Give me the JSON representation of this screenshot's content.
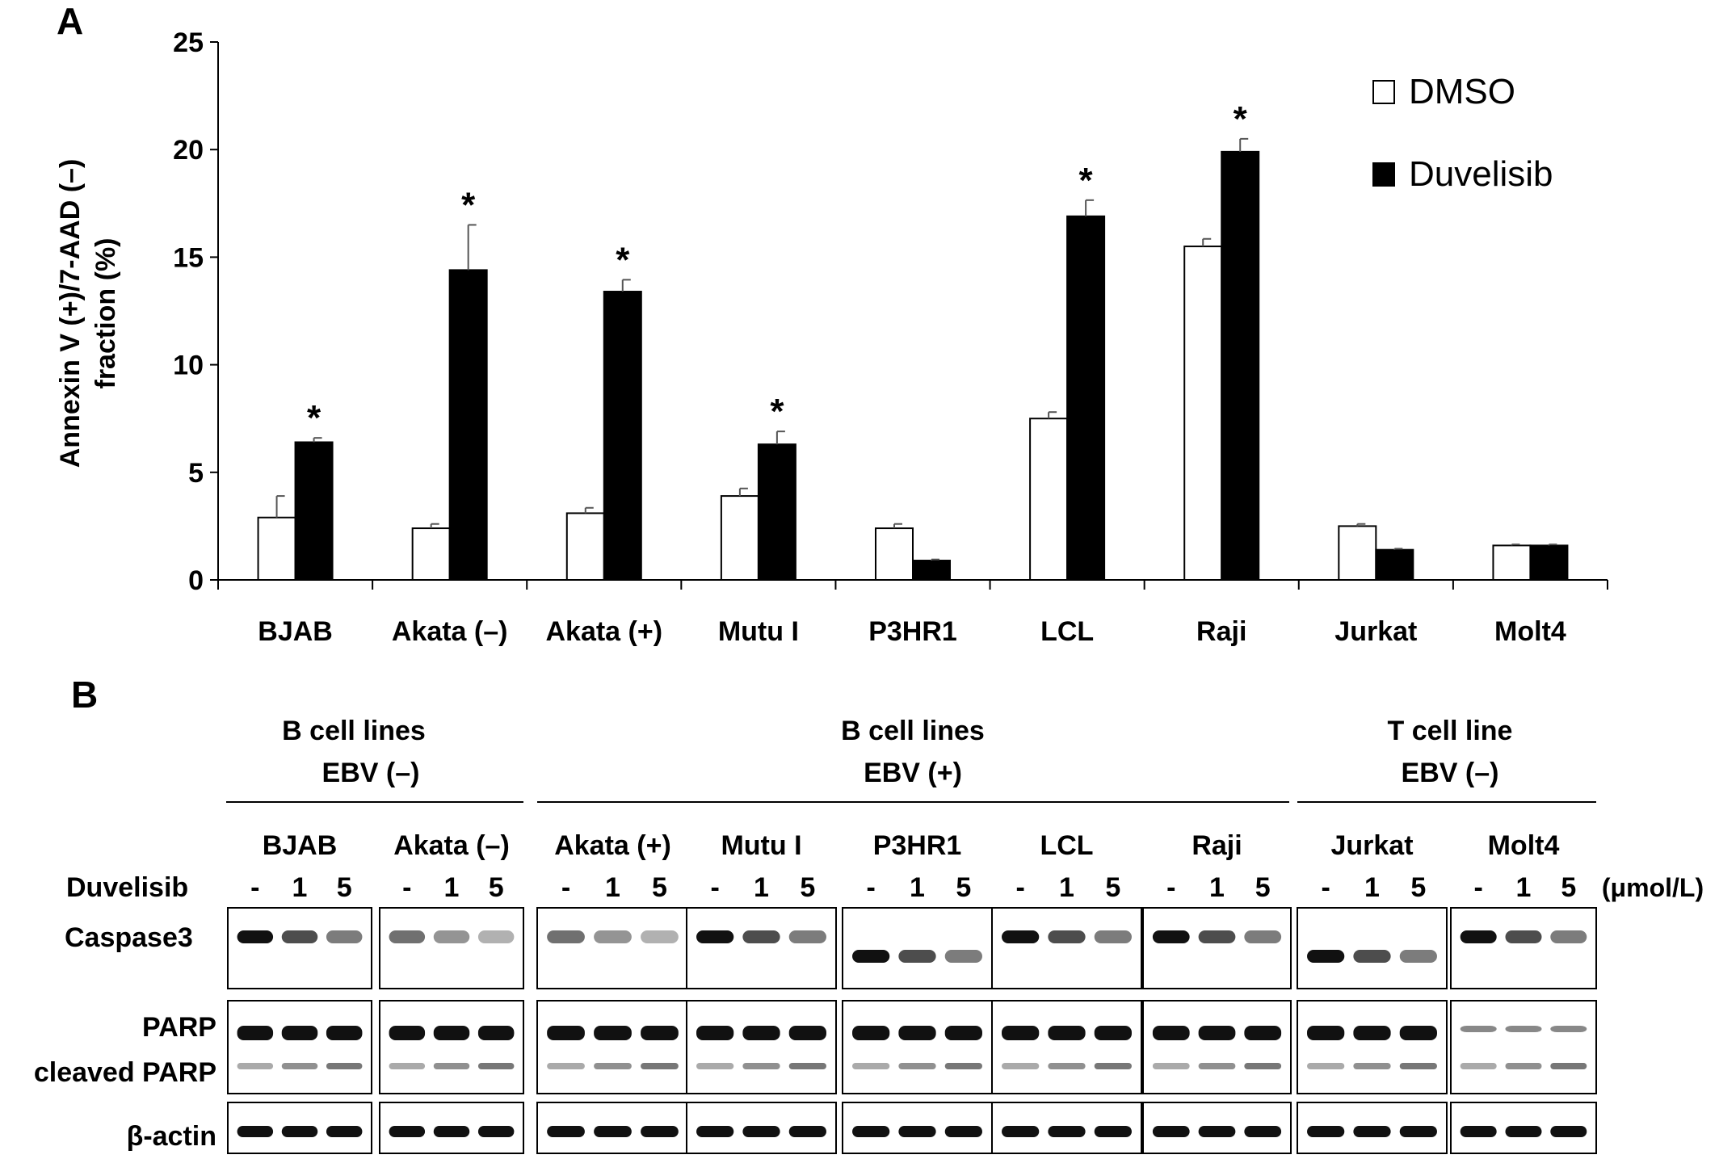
{
  "panel_a_letter": "A",
  "panel_b_letter": "B",
  "chart_data": {
    "type": "bar",
    "title": "",
    "ylabel_line1": "Annexin V (+)/7-AAD (–)",
    "ylabel_line2": "fraction (%)",
    "xlabel": "",
    "ylim": [
      0,
      25
    ],
    "yticks": [
      "0",
      "5",
      "10",
      "15",
      "20",
      "25"
    ],
    "categories": [
      "BJAB",
      "Akata (–)",
      "Akata (+)",
      "Mutu I",
      "P3HR1",
      "LCL",
      "Raji",
      "Jurkat",
      "Molt4"
    ],
    "series": [
      {
        "name": "DMSO",
        "color": "#ffffff",
        "values": [
          2.9,
          2.4,
          3.1,
          3.9,
          2.4,
          7.5,
          15.5,
          2.5,
          1.6
        ],
        "errors": [
          1.0,
          0.2,
          0.25,
          0.35,
          0.2,
          0.3,
          0.35,
          0.1,
          0.05
        ]
      },
      {
        "name": "Duvelisib",
        "color": "#000000",
        "values": [
          6.4,
          14.4,
          13.4,
          6.3,
          0.9,
          16.9,
          19.9,
          1.4,
          1.6
        ],
        "errors": [
          0.2,
          2.1,
          0.55,
          0.6,
          0.05,
          0.75,
          0.6,
          0.05,
          0.05
        ]
      }
    ],
    "significant": [
      true,
      true,
      true,
      true,
      false,
      true,
      true,
      false,
      false
    ],
    "significance_marker": "*",
    "legend_position": "top-right",
    "grid": false
  },
  "blot": {
    "group_headers": [
      {
        "line1": "B cell lines",
        "line2": "EBV (–)"
      },
      {
        "line1": "B cell lines",
        "line2": "EBV (+)"
      },
      {
        "line1": "T cell line",
        "line2": "EBV (–)"
      }
    ],
    "cell_lines": [
      "BJAB",
      "Akata (–)",
      "Akata (+)",
      "Mutu I",
      "P3HR1",
      "LCL",
      "Raji",
      "Jurkat",
      "Molt4"
    ],
    "treatment_label": "Duvelisib",
    "doses": [
      "-",
      "1",
      "5"
    ],
    "dose_unit": "(μmol/L)",
    "row_labels": {
      "caspase3": "Caspase3",
      "parp": "PARP",
      "cleaved_parp": "cleaved PARP",
      "actin": "β-actin"
    }
  }
}
